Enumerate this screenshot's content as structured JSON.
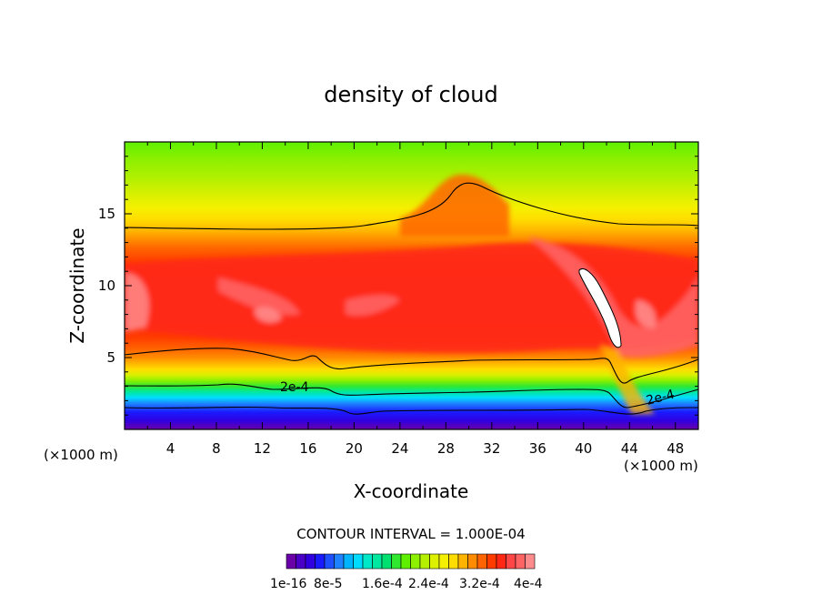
{
  "chart_data": {
    "type": "heatmap",
    "title": "density of cloud",
    "xlabel": "X-coordinate",
    "ylabel": "Z-coordinate",
    "x_unit": "(×1000 m)",
    "x_unit_right": "(×1000 m)",
    "xlim": [
      0,
      50
    ],
    "ylim": [
      0,
      20
    ],
    "x_ticks": [
      4,
      8,
      12,
      16,
      20,
      24,
      28,
      32,
      36,
      40,
      44,
      48
    ],
    "x_tick_labels": [
      "4",
      "8",
      "12",
      "16",
      "20",
      "24",
      "28",
      "32",
      "36",
      "40",
      "44",
      "48"
    ],
    "y_ticks": [
      5,
      10,
      15
    ],
    "y_tick_labels": [
      "5",
      "10",
      "15"
    ],
    "contour_interval_text": "CONTOUR INTERVAL = 1.000E-04",
    "contour_line_labels": [
      "2e-4",
      "2e-4"
    ],
    "colorbar": {
      "colors": [
        "#6a00a8",
        "#4b00c8",
        "#3000e0",
        "#1a1aff",
        "#1e50ff",
        "#1e82ff",
        "#00b4ff",
        "#00dcff",
        "#00e8c8",
        "#00e8a0",
        "#00e070",
        "#30e830",
        "#5ef000",
        "#8cf000",
        "#b4f000",
        "#dcf000",
        "#f5f000",
        "#ffdc00",
        "#ffb400",
        "#ff8c00",
        "#ff6400",
        "#ff3c00",
        "#ff2814",
        "#ff4646",
        "#ff6464",
        "#ff8c8c"
      ],
      "labels": [
        "1e-16",
        "8e-5",
        "1.6e-4",
        "2.4e-4",
        "3.2e-4",
        "4e-4"
      ]
    },
    "regions": [
      {
        "name": "upper yellow-green band",
        "value_range": [
          1e-16,
          0.0001
        ],
        "z_range": [
          14,
          20
        ]
      },
      {
        "name": "orange-red cloud core",
        "value_range": [
          0.0002,
          0.0004
        ],
        "z_range": [
          3,
          14
        ]
      },
      {
        "name": "lower blue-purple edge",
        "value_range": [
          1e-16,
          0.0001
        ],
        "z_range": [
          0,
          2
        ]
      }
    ],
    "grid": false
  }
}
